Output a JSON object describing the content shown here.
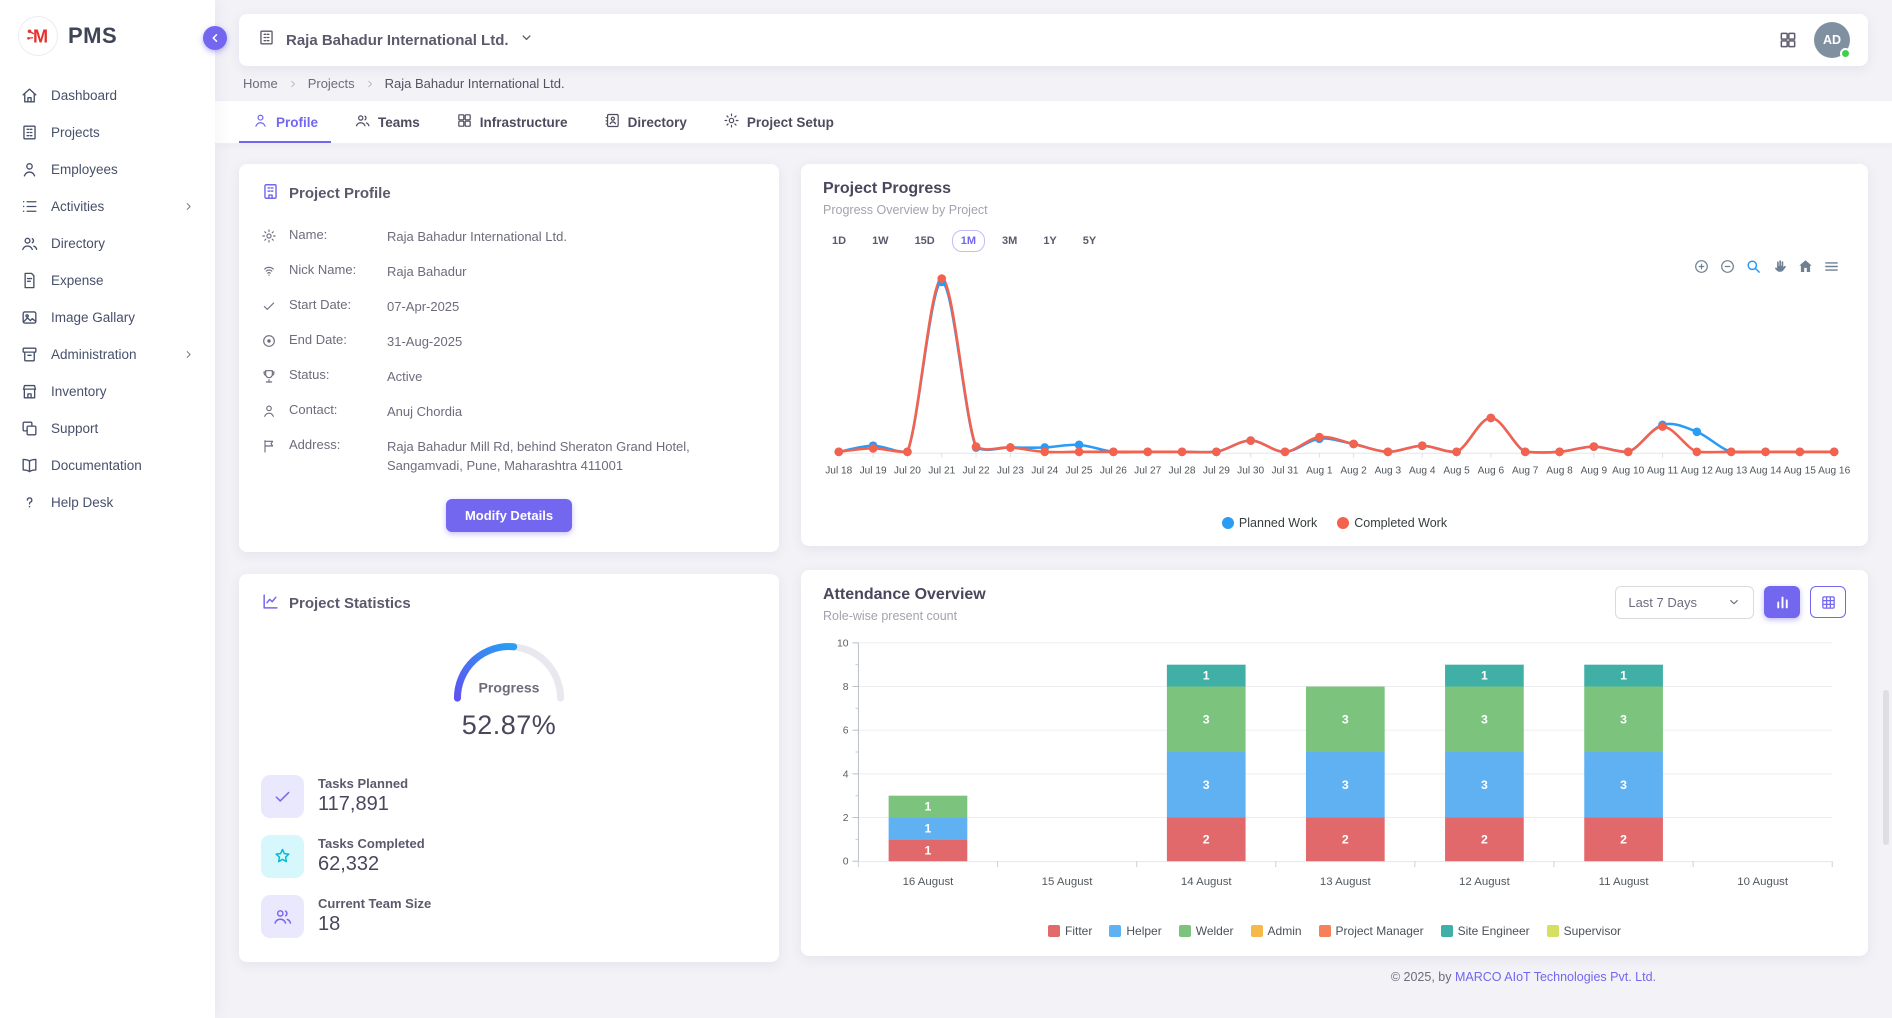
{
  "brand": {
    "name": "PMS"
  },
  "sidebar": {
    "items": [
      {
        "label": "Dashboard",
        "icon": "home-icon",
        "chevron": false
      },
      {
        "label": "Projects",
        "icon": "building-icon",
        "chevron": false
      },
      {
        "label": "Employees",
        "icon": "person-icon",
        "chevron": false
      },
      {
        "label": "Activities",
        "icon": "list-icon",
        "chevron": true
      },
      {
        "label": "Directory",
        "icon": "people-icon",
        "chevron": false
      },
      {
        "label": "Expense",
        "icon": "receipt-icon",
        "chevron": false
      },
      {
        "label": "Image Gallary",
        "icon": "image-icon",
        "chevron": false
      },
      {
        "label": "Administration",
        "icon": "archive-icon",
        "chevron": true
      },
      {
        "label": "Inventory",
        "icon": "store-icon",
        "chevron": false
      },
      {
        "label": "Support",
        "icon": "copy-icon",
        "chevron": false
      },
      {
        "label": "Documentation",
        "icon": "book-icon",
        "chevron": false
      },
      {
        "label": "Help Desk",
        "icon": "question-icon",
        "chevron": false
      }
    ]
  },
  "header": {
    "company": "Raja Bahadur International Ltd.",
    "avatar": "AD"
  },
  "breadcrumb": [
    "Home",
    "Projects",
    "Raja Bahadur International Ltd."
  ],
  "tabs": [
    {
      "label": "Profile",
      "icon": "person-icon",
      "active": true
    },
    {
      "label": "Teams",
      "icon": "people-icon",
      "active": false
    },
    {
      "label": "Infrastructure",
      "icon": "grid-icon",
      "active": false
    },
    {
      "label": "Directory",
      "icon": "address-book-icon",
      "active": false
    },
    {
      "label": "Project Setup",
      "icon": "gear-icon",
      "active": false
    }
  ],
  "profile_card": {
    "title": "Project Profile",
    "fields": [
      {
        "icon": "gear-icon",
        "label": "Name:",
        "value": "Raja Bahadur International Ltd."
      },
      {
        "icon": "fingerprint-icon",
        "label": "Nick Name:",
        "value": "Raja Bahadur"
      },
      {
        "icon": "check-icon",
        "label": "Start Date:",
        "value": "07-Apr-2025"
      },
      {
        "icon": "record-icon",
        "label": "End Date:",
        "value": "31-Aug-2025"
      },
      {
        "icon": "trophy-icon",
        "label": "Status:",
        "value": "Active"
      },
      {
        "icon": "person-icon",
        "label": "Contact:",
        "value": "Anuj Chordia"
      },
      {
        "icon": "flag-icon",
        "label": "Address:",
        "value": "Raja Bahadur Mill Rd, behind Sheraton Grand Hotel, Sangamvadi, Pune, Maharashtra 411001"
      }
    ],
    "button": "Modify Details"
  },
  "stats_card": {
    "title": "Project Statistics",
    "gauge": {
      "label": "Progress",
      "display": "52.87%",
      "percent": 52.87,
      "color_start": "#5f52f2",
      "color_end": "#28a0f5",
      "track": "#e8e8ee"
    },
    "stats": [
      {
        "icon": "check-icon",
        "label": "Tasks Planned",
        "value": "117,891",
        "bg": "#eae8fd",
        "fg": "#7367f0"
      },
      {
        "icon": "star-icon",
        "label": "Tasks Completed",
        "value": "62,332",
        "bg": "#d6f7fb",
        "fg": "#00bcd4"
      },
      {
        "icon": "people-icon",
        "label": "Current Team Size",
        "value": "18",
        "bg": "#eae8fd",
        "fg": "#7367f0"
      }
    ]
  },
  "progress_card": {
    "title": "Project Progress",
    "subtitle": "Progress Overview by Project",
    "ranges": [
      "1D",
      "1W",
      "15D",
      "1M",
      "3M",
      "1Y",
      "5Y"
    ],
    "active_range": "1M"
  },
  "attendance_card": {
    "title": "Attendance Overview",
    "subtitle": "Role-wise present count",
    "filter_value": "Last 7 Days"
  },
  "footer": {
    "prefix": "© 2025, by ",
    "company": "MARCO AIoT Technologies Pvt. Ltd."
  },
  "chart_data": [
    {
      "type": "line",
      "title": "Project Progress",
      "x": [
        "Jul 18",
        "Jul 19",
        "Jul 20",
        "Jul 21",
        "Jul 22",
        "Jul 23",
        "Jul 24",
        "Jul 25",
        "Jul 26",
        "Jul 27",
        "Jul 28",
        "Jul 29",
        "Jul 30",
        "Jul 31",
        "Aug 1",
        "Aug 2",
        "Aug 3",
        "Aug 4",
        "Aug 5",
        "Aug 6",
        "Aug 7",
        "Aug 8",
        "Aug 9",
        "Aug 10",
        "Aug 11",
        "Aug 12",
        "Aug 13",
        "Aug 14",
        "Aug 15",
        "Aug 16"
      ],
      "series": [
        {
          "name": "Planned Work",
          "color": "#2b9cf4",
          "values": [
            0.5,
            4,
            0.5,
            98,
            3,
            3,
            3,
            4.5,
            0.5,
            0.5,
            0.5,
            0.5,
            7,
            0.5,
            8,
            5,
            0.5,
            4,
            0.5,
            20,
            0.5,
            0.5,
            3.5,
            0.5,
            16,
            12,
            0.5,
            0.5,
            0.5,
            0.5
          ]
        },
        {
          "name": "Completed Work",
          "color": "#f4614d",
          "values": [
            0.5,
            2.5,
            0.5,
            100,
            3.5,
            3,
            0.5,
            0.5,
            0.5,
            0.5,
            0.5,
            0.5,
            7,
            0.5,
            9,
            5,
            0.5,
            4,
            0.5,
            20,
            0.5,
            0.5,
            3.5,
            0.5,
            15,
            0.5,
            0.5,
            0.5,
            0.5,
            0.5
          ]
        }
      ],
      "ylim": [
        0,
        105
      ],
      "grid": false,
      "legend_position": "bottom"
    },
    {
      "type": "bar",
      "stacked": true,
      "categories": [
        "16 August",
        "15 August",
        "14 August",
        "13 August",
        "12 August",
        "11 August",
        "10 August"
      ],
      "series": [
        {
          "name": "Fitter",
          "color": "#e2696b",
          "values": [
            1,
            0,
            2,
            2,
            2,
            2,
            0
          ]
        },
        {
          "name": "Helper",
          "color": "#60b1f1",
          "values": [
            1,
            0,
            3,
            3,
            3,
            3,
            0
          ]
        },
        {
          "name": "Welder",
          "color": "#7cc47e",
          "values": [
            1,
            0,
            3,
            3,
            3,
            3,
            0
          ]
        },
        {
          "name": "Admin",
          "color": "#f7b84b",
          "values": [
            0,
            0,
            0,
            0,
            0,
            0,
            0
          ]
        },
        {
          "name": "Project Manager",
          "color": "#f5815b",
          "values": [
            0,
            0,
            0,
            0,
            0,
            0,
            0
          ]
        },
        {
          "name": "Site Engineer",
          "color": "#40b0a6",
          "values": [
            0,
            0,
            1,
            0,
            1,
            1,
            0
          ]
        },
        {
          "name": "Supervisor",
          "color": "#d6df61",
          "values": [
            0,
            0,
            0,
            0,
            0,
            0,
            0
          ]
        }
      ],
      "ylim": [
        0,
        10
      ],
      "yticks": [
        0,
        2,
        4,
        6,
        8,
        10
      ],
      "grid": true,
      "legend_position": "bottom"
    }
  ]
}
